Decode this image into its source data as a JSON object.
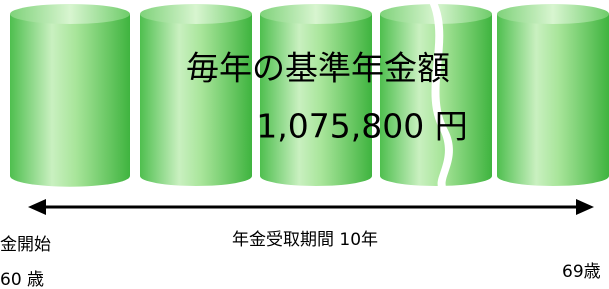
{
  "title": "毎年の基準年金額",
  "amount": "1,075,800 円",
  "period": "年金受取期間 10年",
  "start_label": "金開始",
  "start_age": "60 歳",
  "end_age": "69歳"
}
